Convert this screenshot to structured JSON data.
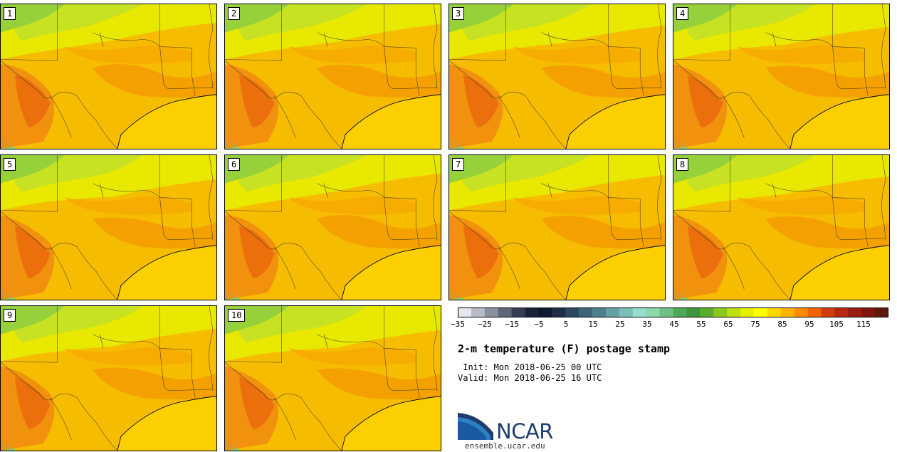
{
  "panels": [
    {
      "label": "1"
    },
    {
      "label": "2"
    },
    {
      "label": "3"
    },
    {
      "label": "4"
    },
    {
      "label": "5"
    },
    {
      "label": "6"
    },
    {
      "label": "7"
    },
    {
      "label": "8"
    },
    {
      "label": "9"
    },
    {
      "label": "10"
    }
  ],
  "colorbar": {
    "colors": [
      "#e6e6ee",
      "#b8bcc8",
      "#8a909e",
      "#5e6678",
      "#363e54",
      "#1a2238",
      "#101830",
      "#1e2e48",
      "#2e4862",
      "#3e6478",
      "#4e808c",
      "#64a0a4",
      "#7cbeb8",
      "#98dccc",
      "#8cd8a8",
      "#6cc084",
      "#4ea85a",
      "#3c963c",
      "#5aac2c",
      "#8cc81c",
      "#bce010",
      "#e4f000",
      "#ffff00",
      "#ffd800",
      "#ffb400",
      "#ff8c00",
      "#f06400",
      "#d03c0c",
      "#b42810",
      "#9a1c10",
      "#80140e",
      "#601810"
    ],
    "labels": [
      "-35",
      "-25",
      "-15",
      "-5",
      "5",
      "15",
      "25",
      "35",
      "45",
      "55",
      "65",
      "75",
      "85",
      "95",
      "105",
      "115"
    ]
  },
  "title": "2-m temperature (F) postage stamp",
  "init": " Init: Mon 2018-06-25 00 UTC",
  "valid": "Valid: Mon 2018-06-25 16 UTC",
  "logo": {
    "name": "NCAR",
    "url": "ensemble.ucar.edu",
    "color": "#1e3d6e"
  }
}
